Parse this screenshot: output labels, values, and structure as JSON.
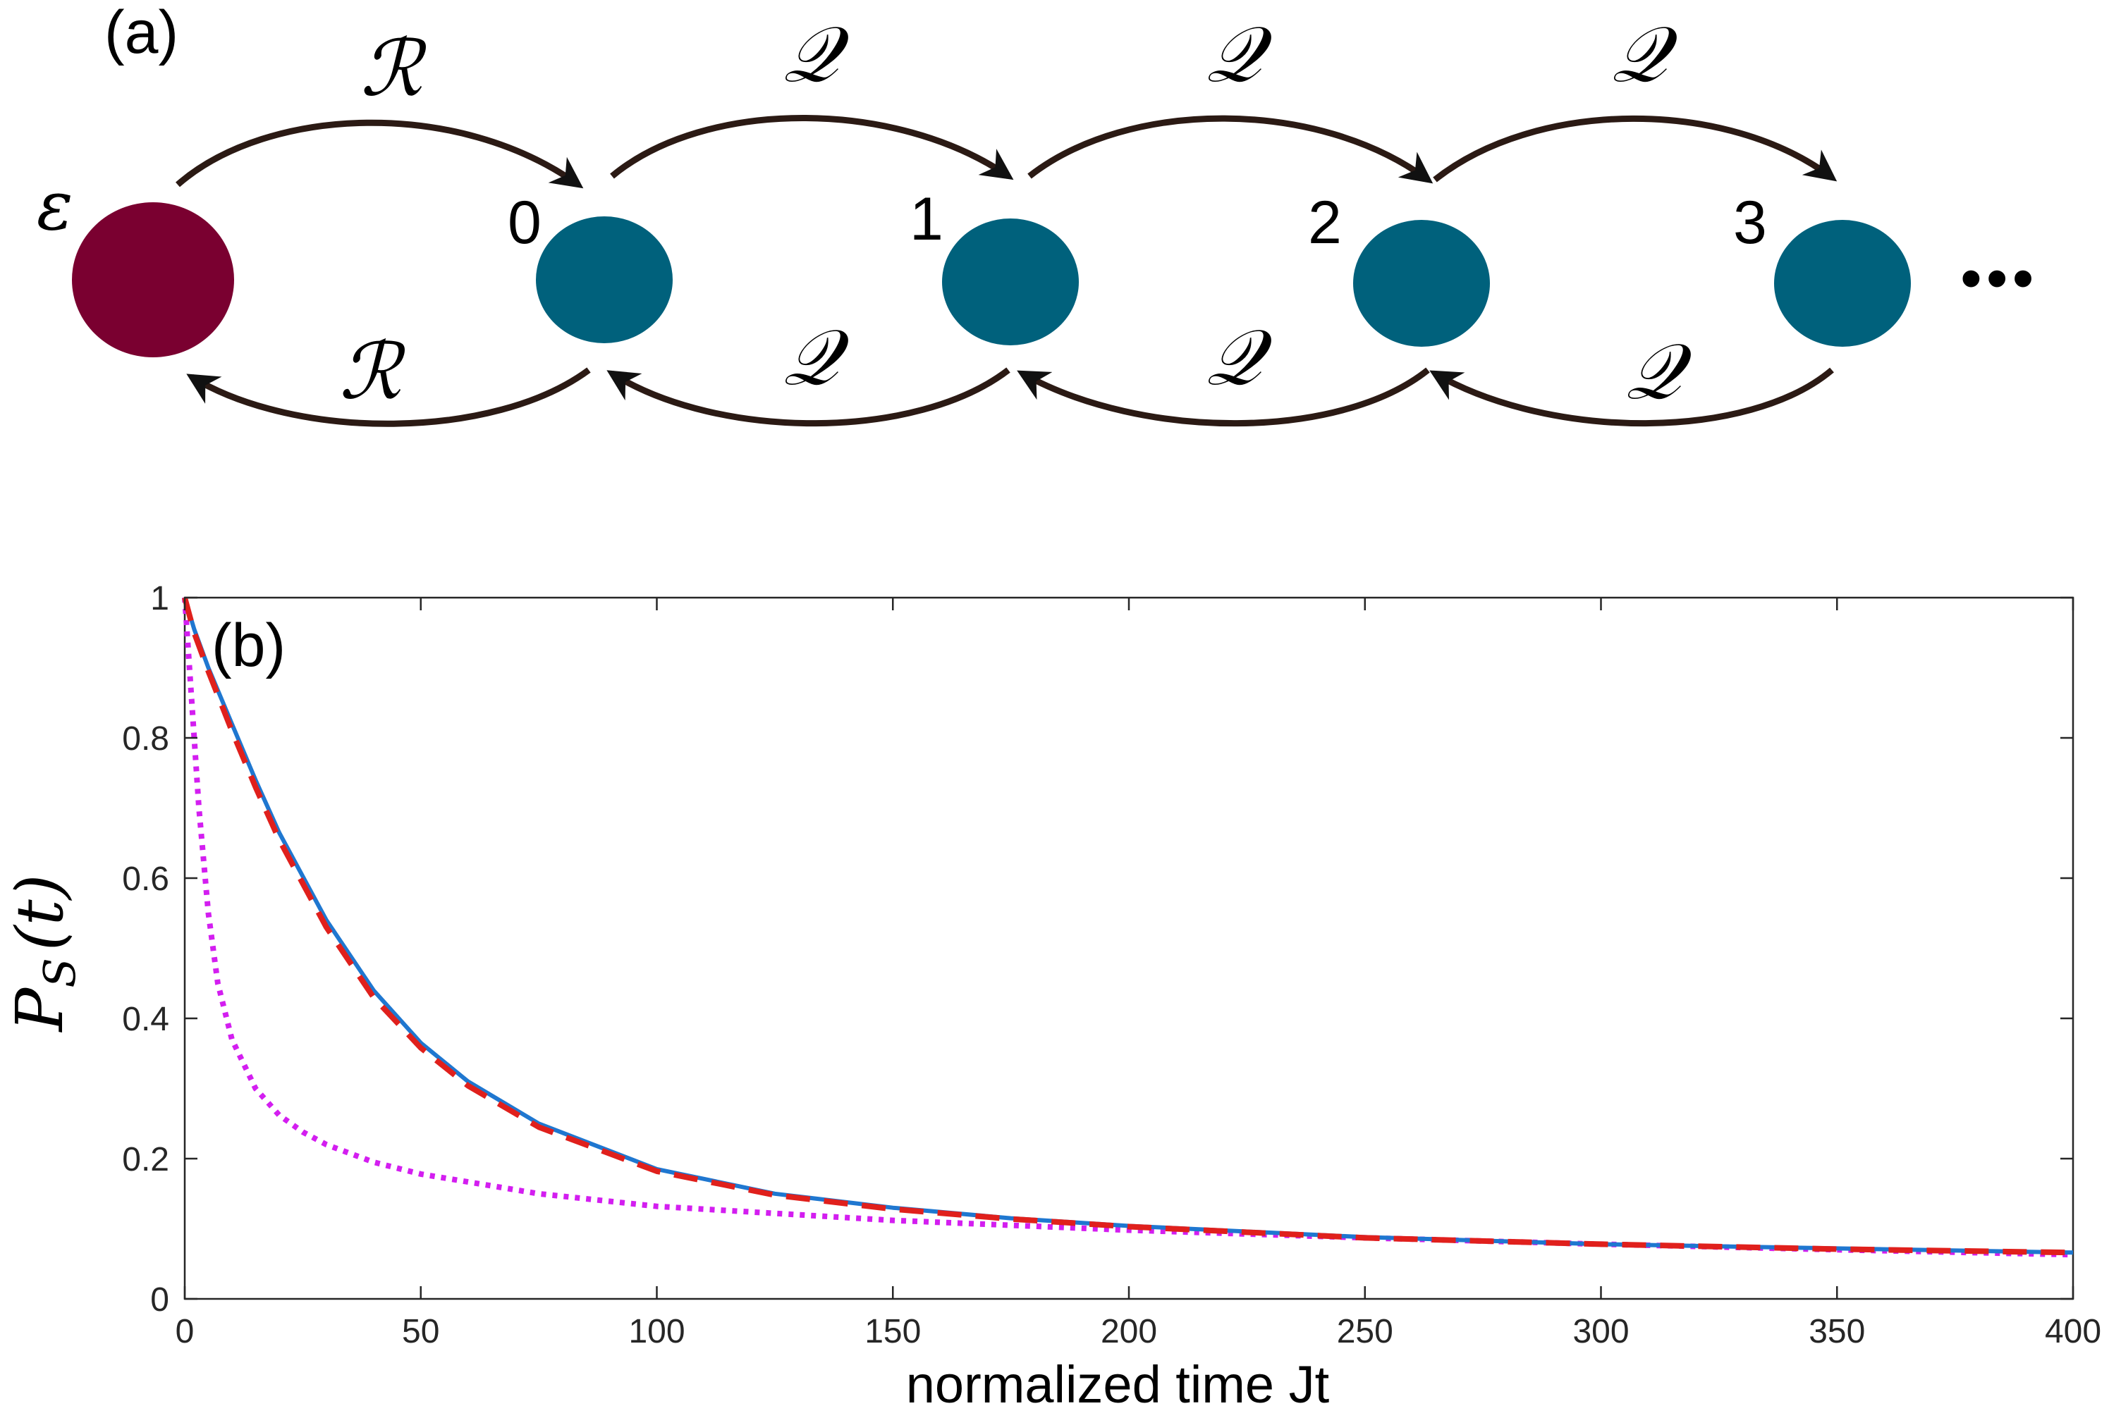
{
  "panel_a": {
    "label": "(a)",
    "site_labels": [
      "ε",
      "0",
      "1",
      "2",
      "3"
    ],
    "ellipsis": "•••",
    "coupling_first": "ℛ",
    "coupling_chain": "𝒬",
    "colors": {
      "defect_site": "#7a0030",
      "chain_site": "#00617c",
      "arrow": "#2b1a14"
    }
  },
  "chart_data": {
    "type": "line",
    "panel_label": "(b)",
    "xlabel": "normalized time Jt",
    "ylabel_main": "P",
    "ylabel_sub": "S",
    "ylabel_arg": "(t)",
    "xlim": [
      0,
      400
    ],
    "ylim": [
      0,
      1
    ],
    "xticks": [
      "0",
      "50",
      "100",
      "150",
      "200",
      "250",
      "300",
      "350",
      "400"
    ],
    "yticks": [
      "0",
      "0.2",
      "0.4",
      "0.6",
      "0.8",
      "1"
    ],
    "grid": false,
    "series": [
      {
        "style": "solid",
        "color": "#1f77d0",
        "x": [
          0,
          2,
          5,
          10,
          15,
          20,
          30,
          40,
          50,
          60,
          75,
          100,
          125,
          150,
          175,
          200,
          250,
          300,
          350,
          400
        ],
        "y": [
          1.0,
          0.955,
          0.9,
          0.82,
          0.74,
          0.665,
          0.54,
          0.44,
          0.365,
          0.31,
          0.25,
          0.185,
          0.15,
          0.13,
          0.115,
          0.104,
          0.088,
          0.078,
          0.072,
          0.066
        ]
      },
      {
        "style": "dashed",
        "color": "#e0201c",
        "x": [
          0,
          2,
          5,
          10,
          15,
          20,
          30,
          40,
          50,
          60,
          75,
          100,
          125,
          150,
          175,
          200,
          250,
          300,
          350,
          400
        ],
        "y": [
          1.0,
          0.95,
          0.895,
          0.81,
          0.73,
          0.655,
          0.53,
          0.43,
          0.358,
          0.304,
          0.245,
          0.182,
          0.148,
          0.128,
          0.114,
          0.103,
          0.087,
          0.078,
          0.071,
          0.066
        ]
      },
      {
        "style": "dotted",
        "color": "#d31ef0",
        "x": [
          0,
          1,
          2,
          3,
          5,
          7,
          10,
          15,
          20,
          25,
          30,
          40,
          50,
          75,
          100,
          150,
          200,
          250,
          300,
          350,
          400
        ],
        "y": [
          1.0,
          0.9,
          0.8,
          0.7,
          0.55,
          0.45,
          0.37,
          0.3,
          0.262,
          0.238,
          0.22,
          0.195,
          0.178,
          0.15,
          0.132,
          0.112,
          0.098,
          0.087,
          0.078,
          0.07,
          0.063
        ]
      }
    ]
  }
}
